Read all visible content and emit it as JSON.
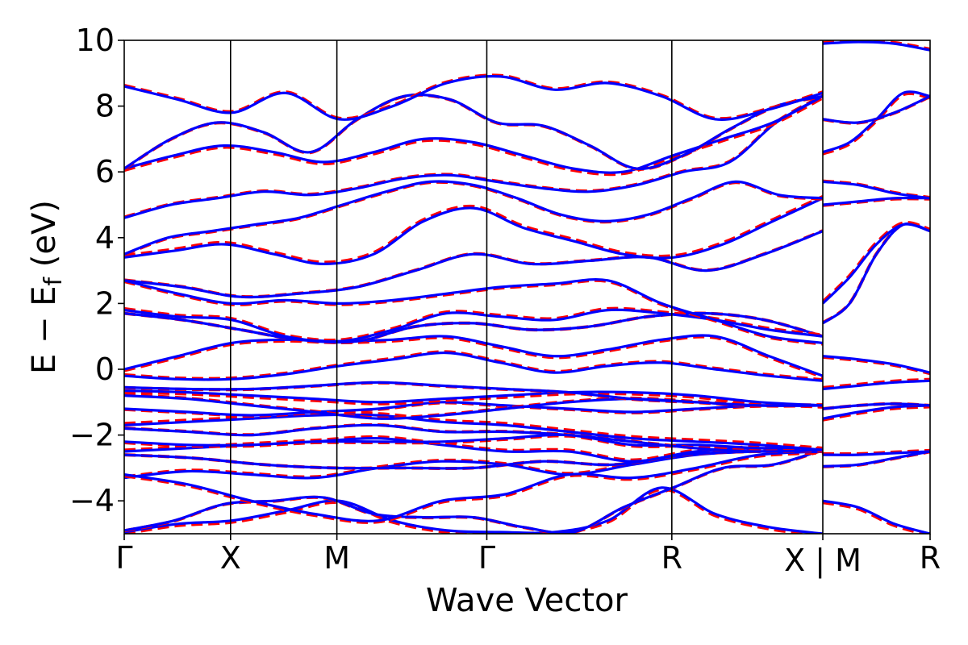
{
  "chart_data": {
    "type": "line",
    "xlabel": "Wave Vector",
    "ylabel": {
      "prefix": "E − E",
      "subscript": "f",
      "suffix": " (eV)"
    },
    "ylim": [
      -5,
      10
    ],
    "yticks": [
      -4,
      -2,
      0,
      2,
      4,
      6,
      8,
      10
    ],
    "ytick_labels": [
      "−4",
      "−2",
      "0",
      "2",
      "4",
      "6",
      "8",
      "10"
    ],
    "x_segments": [
      {
        "labels": [
          "Γ",
          "X",
          "M",
          "Γ",
          "R",
          "X"
        ],
        "positions": [
          0,
          1,
          2,
          3.41,
          5.15,
          6.57
        ]
      },
      {
        "labels": [
          "M",
          "R"
        ],
        "positions": [
          0,
          1
        ]
      }
    ],
    "xtick_labels": [
      "Γ",
      "X",
      "M",
      "Γ",
      "R",
      "X | M",
      "R"
    ],
    "styles": {
      "solid": {
        "color": "#0000ff",
        "dash": "none"
      },
      "dashed": {
        "color": "#ff0000",
        "dash": "dashed"
      }
    },
    "bands": [
      [
        -4.95,
        -4.7,
        -4.6,
        -4.3,
        -4.0,
        -4.6,
        -4.9,
        -4.95,
        -4.95,
        -4.6,
        -3.6,
        -4.4,
        -4.8,
        -5.0
      ],
      [
        -4.9,
        -4.6,
        -4.1,
        -4.0,
        -3.9,
        -4.4,
        -4.5,
        -4.5,
        -4.8,
        -4.95,
        -4.2,
        -3.6,
        -3.0,
        -2.9,
        -2.45
      ],
      [
        -3.3,
        -3.1,
        -3.2,
        -3.3,
        -3.0,
        -2.8,
        -2.9,
        -3.2,
        -2.9,
        -2.6,
        -2.5,
        -2.5
      ],
      [
        -3.2,
        -3.5,
        -4.0,
        -4.4,
        -4.6,
        -4.0,
        -3.8,
        -3.2,
        -3.3,
        -3.0,
        -2.6,
        -2.5
      ],
      [
        -2.6,
        -2.7,
        -2.9,
        -3.0,
        -3.0,
        -3.0,
        -2.8,
        -2.9,
        -2.6,
        -2.5,
        -2.5
      ],
      [
        -2.5,
        -2.4,
        -2.3,
        -2.2,
        -2.1,
        -2.3,
        -2.5,
        -2.5,
        -2.8,
        -2.5,
        -2.4,
        -2.45
      ],
      [
        -2.2,
        -2.3,
        -2.3,
        -2.2,
        -2.2,
        -2.2,
        -2.1,
        -2.0,
        -2.3,
        -2.3,
        -2.4,
        -2.45
      ],
      [
        -1.8,
        -1.9,
        -2.0,
        -1.8,
        -1.7,
        -1.9,
        -1.9,
        -2.0,
        -2.2,
        -2.4,
        -2.5,
        -2.45
      ],
      [
        -1.7,
        -1.6,
        -1.5,
        -1.4,
        -1.4,
        -1.6,
        -1.7,
        -1.9,
        -2.1,
        -2.2,
        -2.3,
        -2.45
      ],
      [
        -1.2,
        -1.3,
        -1.4,
        -1.3,
        -1.2,
        -1.0,
        -1.1,
        -1.2,
        -1.3,
        -1.2,
        -1.1,
        -1.1
      ],
      [
        -0.8,
        -0.9,
        -1.1,
        -1.3,
        -1.5,
        -1.4,
        -1.2,
        -1.0,
        -0.9,
        -1.0,
        -1.1,
        -1.1
      ],
      [
        -0.65,
        -0.7,
        -0.8,
        -0.9,
        -1.0,
        -0.9,
        -0.8,
        -0.7,
        -0.7,
        -0.8,
        -1.0,
        -1.1
      ],
      [
        -0.55,
        -0.6,
        -0.6,
        -0.5,
        -0.4,
        -0.5,
        -0.6,
        -0.7,
        -0.9,
        -1.0,
        -1.1,
        -1.1
      ],
      [
        -0.2,
        -0.3,
        -0.3,
        -0.15,
        0.1,
        0.3,
        0.5,
        0.2,
        -0.1,
        0.1,
        0.2,
        0.0,
        -0.2,
        -0.35
      ],
      [
        0.0,
        0.4,
        0.8,
        0.9,
        0.85,
        0.9,
        1.0,
        0.7,
        0.4,
        0.6,
        0.9,
        1.0,
        0.4,
        -0.2
      ],
      [
        1.7,
        1.5,
        1.2,
        0.9,
        0.85,
        1.3,
        1.4,
        1.2,
        1.3,
        1.6,
        1.7,
        1.5,
        1.0
      ],
      [
        1.8,
        1.6,
        1.5,
        1.0,
        0.85,
        1.2,
        1.7,
        1.6,
        1.5,
        1.8,
        1.7,
        1.5,
        1.2,
        1.0
      ],
      [
        2.7,
        2.3,
        2.0,
        2.1,
        2.0,
        2.1,
        2.3,
        2.5,
        2.6,
        2.7,
        2.0,
        1.5,
        1.0,
        0.8
      ],
      [
        2.7,
        2.5,
        2.2,
        2.3,
        2.5,
        3.0,
        3.5,
        3.2,
        3.3,
        3.4,
        3.0,
        3.5,
        4.2
      ],
      [
        3.4,
        3.6,
        3.8,
        3.5,
        3.2,
        3.5,
        4.5,
        4.9,
        4.3,
        3.9,
        3.5,
        3.4,
        3.8,
        4.5,
        5.2
      ],
      [
        3.5,
        4.0,
        4.2,
        4.4,
        4.6,
        5.0,
        5.4,
        5.7,
        5.6,
        5.2,
        4.7,
        4.5,
        4.7,
        5.2,
        5.7,
        5.3,
        5.2
      ],
      [
        4.6,
        5.0,
        5.2,
        5.4,
        5.3,
        5.5,
        5.8,
        5.9,
        5.7,
        5.5,
        5.4,
        5.6,
        6.0,
        6.3,
        7.5,
        8.3
      ],
      [
        6.1,
        6.5,
        6.8,
        6.6,
        6.3,
        6.6,
        7.0,
        6.9,
        6.5,
        6.1,
        6.0,
        6.5,
        7.0,
        7.5,
        8.3
      ],
      [
        6.1,
        7.0,
        7.5,
        7.2,
        6.6,
        7.6,
        8.3,
        8.2,
        7.5,
        7.4,
        6.8,
        6.1,
        6.5,
        7.3,
        8.0,
        8.3
      ],
      [
        8.6,
        8.2,
        7.8,
        8.4,
        7.6,
        8.0,
        8.7,
        8.9,
        8.5,
        8.7,
        8.3,
        7.6,
        7.9,
        8.4
      ]
    ],
    "right_bands": [
      [
        -4.0,
        -4.2,
        -4.7,
        -5.0
      ],
      [
        -2.95,
        -2.9,
        -2.7,
        -2.5
      ],
      [
        -2.6,
        -2.6,
        -2.55,
        -2.5
      ],
      [
        -1.5,
        -1.3,
        -1.15,
        -1.1
      ],
      [
        -1.2,
        -1.1,
        -1.05,
        -1.1
      ],
      [
        -0.6,
        -0.5,
        -0.4,
        -0.35
      ],
      [
        0.4,
        0.3,
        0.15,
        -0.1
      ],
      [
        1.4,
        2.0,
        3.5,
        4.4,
        4.2
      ],
      [
        2.0,
        2.8,
        3.8,
        4.4,
        4.2
      ],
      [
        5.0,
        5.1,
        5.2,
        5.2
      ],
      [
        5.7,
        5.6,
        5.35,
        5.2
      ],
      [
        6.6,
        6.9,
        7.6,
        8.4,
        8.3
      ],
      [
        7.6,
        7.5,
        7.8,
        8.3
      ],
      [
        9.9,
        9.95,
        9.9,
        9.7
      ]
    ]
  }
}
